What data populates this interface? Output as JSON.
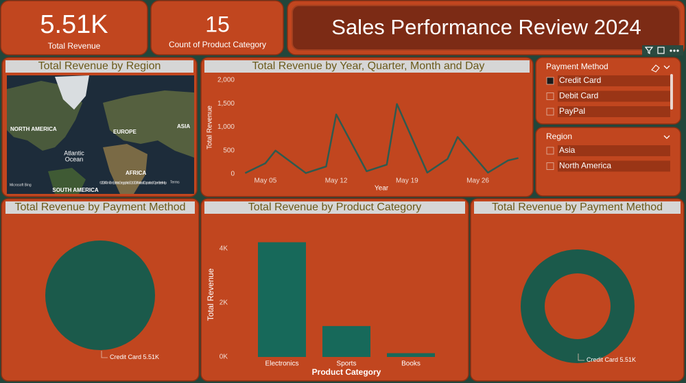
{
  "cards": [
    {
      "value": "5.51K",
      "label": "Total Revenue"
    },
    {
      "value": "15",
      "label": "Count of Product Category"
    }
  ],
  "header": {
    "title": "Sales Performance Review 2024"
  },
  "map": {
    "title": "Total Revenue by Region",
    "labels": [
      "NORTH AMERICA",
      "EUROPE",
      "ASIA",
      "Atlantic",
      "Ocean",
      "AFRICA",
      "SOUTH AMERICA"
    ],
    "attribution": [
      "Microsoft Bing",
      "© 2024 TomTom, Earthstar Geographics SIO, © 2024 Microsoft Corporation, © OpenStreetMap",
      "Terms"
    ]
  },
  "slicers": [
    {
      "title": "Payment Method",
      "items": [
        "Credit Card",
        "Debit Card",
        "PayPal"
      ],
      "selected": [
        0
      ]
    },
    {
      "title": "Region",
      "items": [
        "Asia",
        "North America"
      ],
      "selected": []
    }
  ],
  "chart_data": [
    {
      "type": "line",
      "title": "Total Revenue by Year, Quarter, Month and Day",
      "x_label": "Year",
      "y_label": "Total Revenue",
      "x": [
        3,
        5,
        6,
        9,
        11,
        12,
        15,
        17,
        18,
        21,
        23,
        24,
        27,
        29,
        30
      ],
      "values": [
        20,
        230,
        500,
        20,
        160,
        1270,
        60,
        200,
        1490,
        30,
        320,
        790,
        30,
        290,
        340
      ],
      "color": "#2f5a4f",
      "xlim": [
        2.5,
        30.3
      ],
      "xticks": [
        {
          "value": 5,
          "label": "May 05"
        },
        {
          "value": 12,
          "label": "May 12"
        },
        {
          "value": 19,
          "label": "May 19"
        },
        {
          "value": 26,
          "label": "May 26"
        }
      ],
      "ylim": [
        0,
        2000
      ],
      "yticks": [
        0,
        500,
        {
          "value": 1000,
          "label": "1,000"
        },
        {
          "value": 1500,
          "label": "1,500"
        },
        {
          "value": 2000,
          "label": "2,000"
        }
      ]
    },
    {
      "type": "pie",
      "title": "Total Revenue by Payment Method",
      "categories": [
        "Credit Card"
      ],
      "values": [
        5510
      ],
      "value_labels": [
        "5.51K"
      ],
      "colors": [
        "#1b5a4b"
      ]
    },
    {
      "type": "bar",
      "title": "Total Revenue by Product Category",
      "x_label": "Product Category",
      "y_label": "Total Revenue",
      "categories": [
        "Electronics",
        "Sports",
        "Books"
      ],
      "values": [
        4230,
        1140,
        140
      ],
      "color": "#17695a",
      "ylim": [
        0,
        4800
      ],
      "yticks": [
        {
          "value": 0,
          "label": "0K"
        },
        {
          "value": 2000,
          "label": "2K"
        },
        {
          "value": 4000,
          "label": "4K"
        }
      ]
    },
    {
      "type": "donut",
      "title": "Total Revenue by Payment Method",
      "categories": [
        "Credit Card"
      ],
      "values": [
        5510
      ],
      "value_labels": [
        "5.51K"
      ],
      "colors": [
        "#1b5a4b"
      ]
    }
  ]
}
